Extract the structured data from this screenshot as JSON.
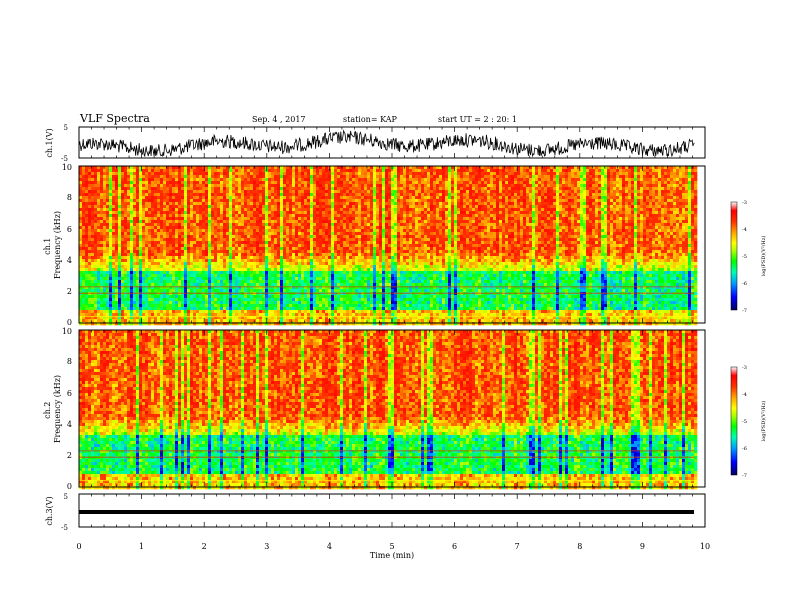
{
  "header": {
    "title": "VLF Spectra",
    "date": "Sep. 4 , 2017",
    "station": "station= KAP",
    "start": "start  UT =  2 : 20: 1"
  },
  "chart_data": [
    {
      "type": "line",
      "panel": "ch1-waveform",
      "ylabel": "ch.1(V)",
      "ylim": [
        -5,
        5
      ],
      "yticks": [
        "5",
        "-5"
      ],
      "xlim": [
        0,
        10
      ],
      "note": "continuous noisy waveform spanning 0 to ~9.8 min"
    },
    {
      "type": "heatmap",
      "panel": "ch1-spectrogram",
      "ylabel": "ch.1\nFrequency  (kHz)",
      "ylim": [
        0,
        10
      ],
      "yticks": [
        "0",
        "2",
        "4",
        "6",
        "8",
        "10"
      ],
      "xlim": [
        0,
        10
      ],
      "data_extent_min": 9.83,
      "colorbar": {
        "label": "log(PSD)(V²/Hz)",
        "range": [
          -7,
          -3
        ],
        "ticks": [
          "-3",
          "-4",
          "-5",
          "-6",
          "-7"
        ],
        "colormap": [
          "#000080",
          "#0000ff",
          "#00aaff",
          "#00ffaa",
          "#00ff00",
          "#aaff00",
          "#ffff00",
          "#ffaa00",
          "#ff4000",
          "#ff0000",
          "#ffffff"
        ]
      }
    },
    {
      "type": "heatmap",
      "panel": "ch2-spectrogram",
      "ylabel": "ch.2\nFrequency  (kHz)",
      "ylim": [
        0,
        10
      ],
      "yticks": [
        "0",
        "2",
        "4",
        "6",
        "8",
        "10"
      ],
      "xlim": [
        0,
        10
      ],
      "data_extent_min": 9.83,
      "colorbar": {
        "label": "log(PSD)(V²/Hz)",
        "range": [
          -7,
          -3
        ],
        "ticks": [
          "-3",
          "-4",
          "-5",
          "-6",
          "-7"
        ]
      }
    },
    {
      "type": "line",
      "panel": "ch3-waveform",
      "ylabel": "ch.3(V)",
      "ylim": [
        -5,
        5
      ],
      "yticks": [
        "5",
        "-5"
      ],
      "xlim": [
        0,
        10
      ],
      "values": {
        "x": [
          0,
          9.83
        ],
        "y": [
          0,
          0
        ]
      }
    }
  ],
  "xaxis": {
    "label": "Time  (min)",
    "ticks": [
      "0",
      "1",
      "2",
      "3",
      "4",
      "5",
      "6",
      "7",
      "8",
      "9",
      "10"
    ]
  }
}
